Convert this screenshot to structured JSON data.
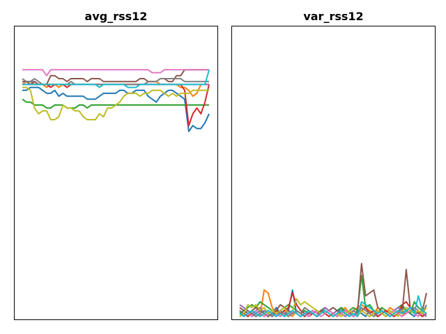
{
  "chart_data": [
    {
      "type": "line",
      "title": "avg_rss12",
      "xlabel": "",
      "ylabel": "",
      "xlim": [
        0,
        47
      ],
      "ylim": [
        0,
        100
      ],
      "grid": false,
      "ticks": "hidden",
      "series": [
        {
          "color": "#1f77b4",
          "values": [
            78,
            78,
            79,
            79,
            79,
            78,
            77,
            77,
            78,
            76,
            77,
            76,
            76,
            76,
            76,
            76,
            75,
            75,
            75,
            76,
            77,
            77,
            77,
            77,
            78,
            78,
            77,
            77,
            78,
            78,
            78,
            76,
            75,
            74,
            76,
            77,
            78,
            78,
            77,
            76,
            75,
            64,
            66,
            65,
            65,
            67,
            70
          ]
        },
        {
          "color": "#ff7f0e",
          "values": [
            80,
            81,
            81,
            80,
            80,
            80,
            79,
            80,
            80,
            79,
            80,
            80,
            80,
            80,
            80,
            80,
            80,
            80,
            80,
            80,
            80,
            80,
            80,
            80,
            80,
            80,
            80,
            80,
            80,
            80,
            80,
            81,
            81,
            81,
            80,
            80,
            80,
            80,
            80,
            79,
            79,
            78,
            76,
            77,
            80,
            80,
            80
          ]
        },
        {
          "color": "#2ca02c",
          "values": [
            75,
            74,
            74,
            73,
            73,
            73,
            72,
            72,
            73,
            73,
            73,
            72,
            72,
            72,
            73,
            73,
            72,
            73,
            73,
            73,
            73,
            73,
            73,
            73,
            73,
            73,
            73,
            73,
            73,
            73,
            73,
            73,
            73,
            73,
            73,
            73,
            73,
            73,
            73,
            73,
            73,
            73,
            73,
            73,
            73,
            73,
            73
          ]
        },
        {
          "color": "#d62728",
          "values": [
            80,
            80,
            80,
            80,
            80,
            80,
            80,
            79,
            80,
            80,
            80,
            79,
            80,
            80,
            80,
            80,
            80,
            80,
            80,
            80,
            80,
            80,
            80,
            80,
            80,
            80,
            80,
            80,
            80,
            80,
            80,
            80,
            80,
            80,
            80,
            80,
            80,
            80,
            80,
            80,
            78,
            66,
            70,
            72,
            70,
            74,
            80
          ]
        },
        {
          "color": "#9467bd",
          "values": [
            81,
            81,
            81,
            81,
            80,
            80,
            80,
            80,
            80,
            80,
            80,
            80,
            80,
            80,
            80,
            80,
            80,
            80,
            80,
            80,
            80,
            80,
            80,
            80,
            80,
            80,
            80,
            80,
            80,
            80,
            80,
            80,
            80,
            80,
            80,
            80,
            80,
            80,
            80,
            80,
            80,
            80,
            80,
            80,
            80,
            80,
            80
          ]
        },
        {
          "color": "#8c564b",
          "values": [
            81,
            81,
            80,
            81,
            80,
            80,
            80,
            83,
            83,
            82,
            82,
            81,
            82,
            82,
            82,
            82,
            81,
            82,
            82,
            82,
            81,
            81,
            81,
            81,
            81,
            81,
            81,
            81,
            81,
            82,
            82,
            81,
            81,
            81,
            82,
            82,
            81,
            81,
            83,
            83,
            85,
            85,
            85,
            85,
            85,
            85,
            85
          ]
        },
        {
          "color": "#e377c2",
          "values": [
            85,
            85,
            85,
            85,
            85,
            85,
            83,
            85,
            85,
            85,
            85,
            85,
            85,
            85,
            85,
            85,
            85,
            85,
            85,
            85,
            85,
            85,
            85,
            85,
            85,
            85,
            85,
            85,
            85,
            85,
            85,
            85,
            84,
            84,
            84,
            85,
            85,
            85,
            85,
            85,
            85,
            85,
            85,
            85,
            85,
            85,
            85
          ]
        },
        {
          "color": "#7f7f7f",
          "values": [
            82,
            81,
            81,
            82,
            81,
            80,
            80,
            80,
            80,
            80,
            80,
            80,
            81,
            80,
            80,
            80,
            80,
            80,
            80,
            80,
            80,
            80,
            80,
            80,
            80,
            80,
            80,
            80,
            80,
            80,
            80,
            81,
            81,
            81,
            82,
            82,
            82,
            82,
            82,
            82,
            81,
            81,
            81,
            81,
            81,
            81,
            81
          ]
        },
        {
          "color": "#bcbd22",
          "values": [
            79,
            79,
            78,
            72,
            70,
            71,
            71,
            68,
            68,
            69,
            73,
            72,
            72,
            71,
            71,
            69,
            68,
            68,
            68,
            70,
            69,
            72,
            72,
            73,
            74,
            76,
            77,
            77,
            77,
            76,
            77,
            77,
            78,
            78,
            78,
            77,
            76,
            77,
            76,
            77,
            77,
            77,
            78,
            78,
            78,
            78,
            78
          ]
        },
        {
          "color": "#17becf",
          "values": [
            80,
            80,
            80,
            80,
            80,
            80,
            80,
            80,
            80,
            80,
            80,
            80,
            80,
            80,
            80,
            80,
            80,
            80,
            80,
            79,
            80,
            80,
            80,
            80,
            80,
            80,
            79,
            79,
            79,
            80,
            80,
            80,
            80,
            80,
            80,
            80,
            80,
            80,
            80,
            80,
            80,
            80,
            80,
            80,
            80,
            80,
            85
          ]
        }
      ]
    },
    {
      "type": "line",
      "title": "var_rss12",
      "xlabel": "",
      "ylabel": "",
      "xlim": [
        0,
        47
      ],
      "ylim": [
        0,
        100
      ],
      "grid": false,
      "ticks": "hidden",
      "series": [
        {
          "color": "#1f77b4",
          "values": [
            3,
            1,
            2,
            1,
            2,
            3,
            2,
            1,
            2,
            4,
            2,
            1,
            3,
            10,
            2,
            1,
            2,
            3,
            2,
            1,
            2,
            3,
            2,
            1,
            2,
            4,
            3,
            2,
            1,
            3,
            2,
            1,
            3,
            2,
            1,
            2,
            3,
            2,
            1,
            2,
            4,
            3,
            2,
            1,
            3,
            2,
            1
          ]
        },
        {
          "color": "#ff7f0e",
          "values": [
            1,
            2,
            1,
            3,
            2,
            1,
            10,
            9,
            4,
            2,
            1,
            3,
            2,
            1,
            3,
            2,
            4,
            3,
            2,
            1,
            2,
            4,
            3,
            2,
            1,
            3,
            4,
            2,
            3,
            4,
            5,
            4,
            3,
            2,
            4,
            3,
            2,
            4,
            3,
            2,
            1,
            3,
            4,
            2,
            3,
            1,
            2
          ]
        },
        {
          "color": "#2ca02c",
          "values": [
            2,
            3,
            4,
            5,
            4,
            6,
            5,
            4,
            3,
            2,
            3,
            4,
            5,
            4,
            3,
            2,
            3,
            2,
            3,
            2,
            3,
            4,
            3,
            2,
            3,
            4,
            2,
            3,
            4,
            3,
            15,
            4,
            5,
            3,
            2,
            4,
            3,
            2,
            3,
            4,
            5,
            3,
            2,
            6,
            4,
            3,
            2
          ]
        },
        {
          "color": "#d62728",
          "values": [
            1,
            2,
            1,
            2,
            1,
            2,
            1,
            2,
            1,
            3,
            2,
            3,
            4,
            9,
            5,
            3,
            2,
            1,
            2,
            1,
            3,
            2,
            1,
            2,
            1,
            2,
            3,
            2,
            1,
            2,
            3,
            4,
            2,
            3,
            1,
            2,
            3,
            2,
            1,
            2,
            5,
            6,
            4,
            3,
            2,
            1,
            2
          ]
        },
        {
          "color": "#9467bd",
          "values": [
            5,
            4,
            3,
            2,
            3,
            4,
            2,
            3,
            2,
            1,
            3,
            2,
            3,
            2,
            3,
            2,
            1,
            3,
            2,
            3,
            2,
            4,
            3,
            2,
            3,
            2,
            1,
            2,
            3,
            2,
            3,
            2,
            1,
            2,
            3,
            2,
            1,
            2,
            3,
            4,
            3,
            2,
            3,
            4,
            3,
            2,
            1
          ]
        },
        {
          "color": "#8c564b",
          "values": [
            4,
            3,
            2,
            3,
            4,
            3,
            2,
            1,
            2,
            3,
            5,
            4,
            3,
            2,
            3,
            2,
            1,
            2,
            3,
            2,
            3,
            2,
            3,
            4,
            3,
            2,
            3,
            2,
            3,
            2,
            19,
            8,
            9,
            10,
            4,
            3,
            2,
            1,
            2,
            3,
            2,
            17,
            4,
            3,
            2,
            3,
            9
          ]
        },
        {
          "color": "#e377c2",
          "values": [
            2,
            1,
            2,
            1,
            3,
            2,
            1,
            2,
            3,
            2,
            1,
            2,
            1,
            3,
            2,
            1,
            2,
            1,
            3,
            2,
            1,
            2,
            3,
            2,
            1,
            2,
            3,
            2,
            1,
            2,
            3,
            2,
            1,
            2,
            3,
            2,
            1,
            2,
            3,
            2,
            1,
            2,
            3,
            2,
            1,
            3,
            4
          ]
        },
        {
          "color": "#7f7f7f",
          "values": [
            3,
            2,
            3,
            2,
            1,
            2,
            3,
            2,
            1,
            2,
            3,
            2,
            1,
            2,
            3,
            2,
            4,
            3,
            2,
            1,
            2,
            3,
            2,
            1,
            2,
            3,
            2,
            1,
            3,
            2,
            4,
            3,
            2,
            1,
            2,
            3,
            2,
            1,
            2,
            3,
            2,
            3,
            4,
            2,
            3,
            2,
            5
          ]
        },
        {
          "color": "#bcbd22",
          "values": [
            1,
            2,
            5,
            4,
            5,
            3,
            4,
            2,
            3,
            2,
            3,
            4,
            2,
            3,
            7,
            5,
            6,
            5,
            4,
            3,
            2,
            3,
            2,
            1,
            2,
            1,
            2,
            3,
            2,
            1,
            3,
            2,
            1,
            2,
            3,
            2,
            1,
            3,
            2,
            1,
            3,
            4,
            3,
            2,
            3,
            2,
            4
          ]
        },
        {
          "color": "#17becf",
          "values": [
            2,
            1,
            2,
            3,
            2,
            1,
            2,
            3,
            2,
            1,
            2,
            1,
            2,
            3,
            2,
            1,
            2,
            3,
            2,
            1,
            2,
            3,
            2,
            1,
            2,
            3,
            2,
            1,
            2,
            1,
            6,
            5,
            4,
            3,
            2,
            3,
            2,
            1,
            2,
            3,
            2,
            3,
            4,
            2,
            8,
            3,
            2
          ]
        }
      ]
    }
  ]
}
